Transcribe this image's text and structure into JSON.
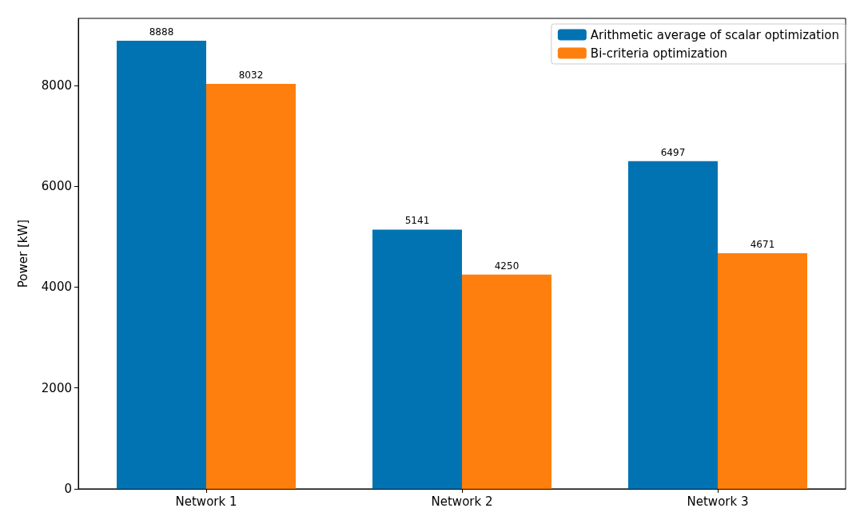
{
  "chart_data": {
    "type": "bar",
    "ylabel": "Power [kW]",
    "categories": [
      "Network 1",
      "Network 2",
      "Network 3"
    ],
    "series": [
      {
        "name": "Arithmetic average of scalar optimization",
        "color": "#0173b2",
        "values": [
          8888,
          5141,
          6497
        ]
      },
      {
        "name": "Bi-criteria optimization",
        "color": "#ff7f0e",
        "values": [
          8032,
          4250,
          4671
        ]
      }
    ],
    "ylim": [
      0,
      9330
    ],
    "yticks": [
      0,
      2000,
      4000,
      6000,
      8000
    ],
    "grid": false,
    "legend": "top right",
    "data_labels": true
  }
}
